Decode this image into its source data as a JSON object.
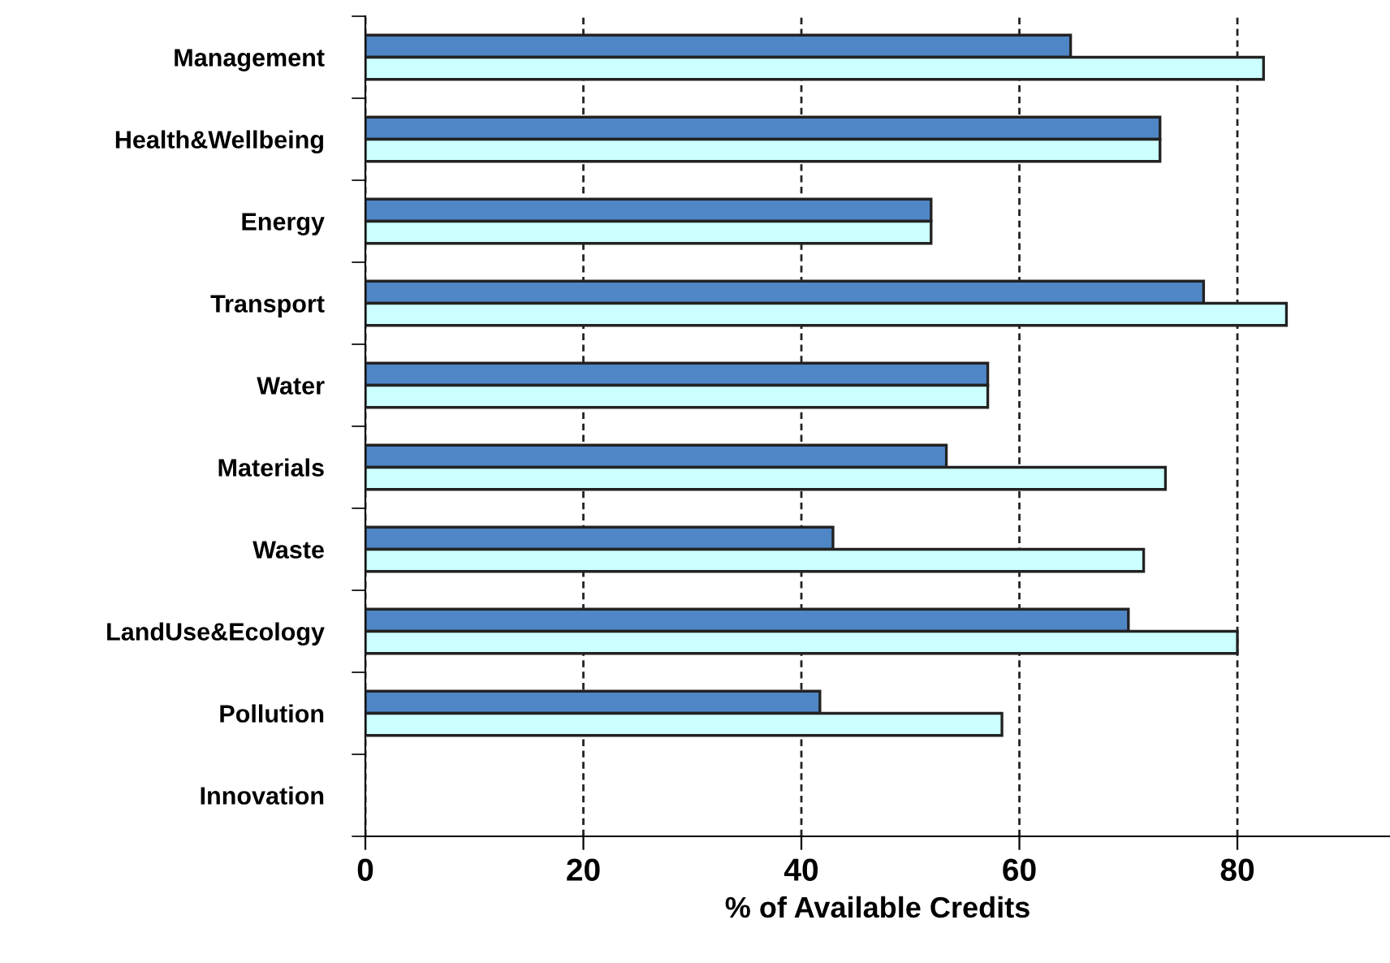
{
  "chart_data": {
    "type": "bar",
    "orientation": "horizontal",
    "categories": [
      "Management",
      "Health&Wellbeing",
      "Energy",
      "Transport",
      "Water",
      "Materials",
      "Waste",
      "LandUse&Ecology",
      "Pollution",
      "Innovation"
    ],
    "series": [
      {
        "color": "#4f86c6",
        "values": [
          64.7,
          72.9,
          51.9,
          76.9,
          57.1,
          53.3,
          42.9,
          70.0,
          41.7,
          null
        ]
      },
      {
        "color": "#ccffff",
        "values": [
          82.4,
          72.9,
          51.9,
          84.5,
          57.1,
          73.4,
          71.4,
          80.0,
          58.4,
          null
        ]
      }
    ],
    "xlabel": "% of Available Credits",
    "xlim": [
      0,
      94
    ],
    "xticks": [
      0,
      20,
      40,
      60,
      80
    ],
    "grid": "x",
    "line_style": "dashed"
  }
}
